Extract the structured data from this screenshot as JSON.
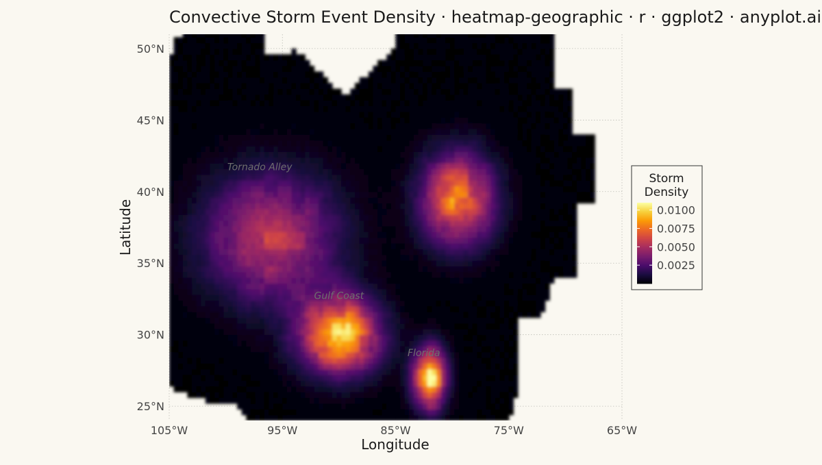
{
  "chart_data": {
    "type": "heatmap",
    "title": "Convective Storm Event Density · heatmap-geographic · r · ggplot2 · anyplot.ai",
    "xlabel": "Longitude",
    "ylabel": "Latitude",
    "xlim": [
      -105,
      -65
    ],
    "ylim": [
      24,
      51
    ],
    "x_ticks": [
      {
        "value": -105,
        "label": "105°W"
      },
      {
        "value": -95,
        "label": "95°W"
      },
      {
        "value": -85,
        "label": "85°W"
      },
      {
        "value": -75,
        "label": "75°W"
      },
      {
        "value": -65,
        "label": "65°W"
      }
    ],
    "y_ticks": [
      {
        "value": 25,
        "label": "25°N"
      },
      {
        "value": 30,
        "label": "30°N"
      },
      {
        "value": 35,
        "label": "35°N"
      },
      {
        "value": 40,
        "label": "40°N"
      },
      {
        "value": 45,
        "label": "45°N"
      },
      {
        "value": 50,
        "label": "50°N"
      }
    ],
    "grid": true,
    "legend": {
      "title_line1": "Storm",
      "title_line2": "Density",
      "position": "right",
      "range": [
        0,
        0.011
      ],
      "breaks": [
        {
          "value": 0.01,
          "label": "0.0100"
        },
        {
          "value": 0.0075,
          "label": "0.0075"
        },
        {
          "value": 0.005,
          "label": "0.0050"
        },
        {
          "value": 0.0025,
          "label": "0.0025"
        }
      ]
    },
    "colormap": [
      "#000004",
      "#1B0C41",
      "#4A0C6B",
      "#781C6D",
      "#A52C60",
      "#CF4446",
      "#ED6925",
      "#FB9B06",
      "#F7D13D",
      "#FCFFA4"
    ],
    "hotspots": [
      {
        "lon": -96,
        "lat": 36.8,
        "peak": 0.0055,
        "spread_lon": 5.5,
        "spread_lat": 4.2
      },
      {
        "lon": -79.5,
        "lat": 39.5,
        "peak": 0.0078,
        "spread_lon": 3.0,
        "spread_lat": 3.0
      },
      {
        "lon": -90,
        "lat": 30,
        "peak": 0.0098,
        "spread_lon": 3.3,
        "spread_lat": 2.5
      },
      {
        "lon": -82,
        "lat": 27,
        "peak": 0.0102,
        "spread_lon": 1.4,
        "spread_lat": 2.0
      }
    ],
    "annotations": [
      {
        "text": "Tornado Alley",
        "lon": -97,
        "lat": 41.5
      },
      {
        "text": "Gulf Coast",
        "lon": -90,
        "lat": 32.5
      },
      {
        "text": "Florida",
        "lon": -82.5,
        "lat": 28.5
      }
    ]
  }
}
